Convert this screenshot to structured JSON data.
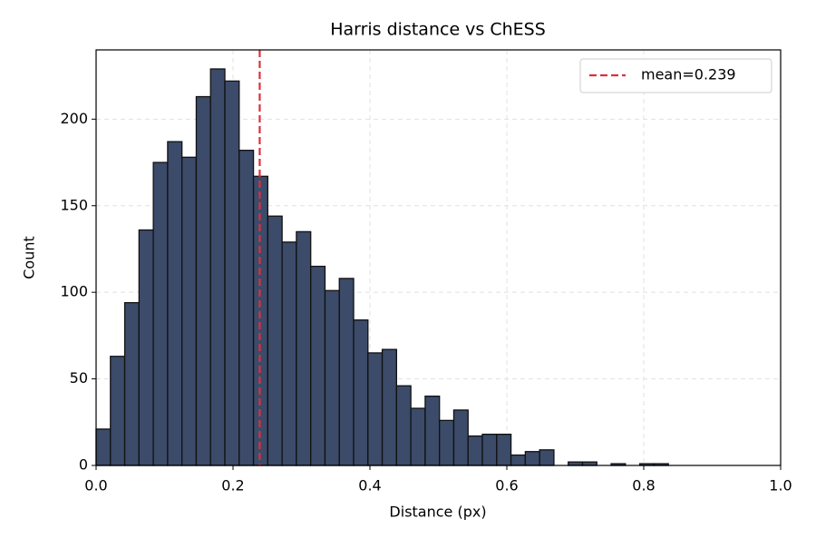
{
  "chart_data": {
    "type": "histogram",
    "title": "Harris distance vs ChESS",
    "x_label": "Distance (px)",
    "y_label": "Count",
    "bins": [
      0,
      0.0209,
      0.0418,
      0.0627,
      0.0836,
      0.1045,
      0.1254,
      0.1463,
      0.1672,
      0.1881,
      0.209,
      0.2299,
      0.2508,
      0.2717,
      0.2926,
      0.3135,
      0.3344,
      0.3553,
      0.3762,
      0.3971,
      0.418,
      0.4389,
      0.4598,
      0.4807,
      0.5016,
      0.5225,
      0.5434,
      0.5643,
      0.5852,
      0.6061,
      0.627,
      0.6479,
      0.6688,
      0.6897,
      0.7106,
      0.7315,
      0.7524,
      0.7733,
      0.7942,
      0.8151,
      0.836
    ],
    "values": [
      21,
      63,
      94,
      136,
      175,
      187,
      178,
      213,
      229,
      222,
      182,
      167,
      144,
      129,
      135,
      115,
      101,
      108,
      84,
      65,
      67,
      46,
      33,
      40,
      26,
      32,
      17,
      18,
      18,
      6,
      8,
      9,
      0,
      2,
      2,
      0,
      1,
      0,
      1,
      1
    ],
    "color": "#3b4b69",
    "edgecolor": "#111111",
    "mean_line": {
      "value": 0.239,
      "label": "mean=0.239",
      "color": "#dc2f3d"
    },
    "xlim": [
      0,
      1
    ],
    "xticks": [
      {
        "value": 0,
        "label": "0.0"
      },
      0.2,
      0.4,
      0.6,
      0.8,
      {
        "value": 1,
        "label": "1.0"
      }
    ],
    "ylim": [
      0,
      240
    ],
    "yticks": [
      0,
      50,
      100,
      150,
      200
    ],
    "grid": true,
    "legend_position": "upper right"
  }
}
